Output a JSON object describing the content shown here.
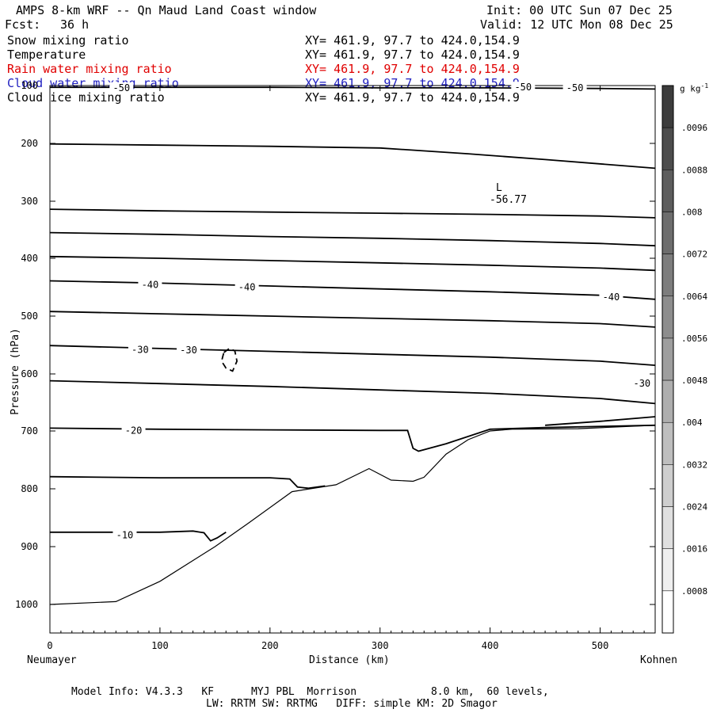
{
  "header": {
    "title": "AMPS 8-km WRF -- Qn Maud Land Coast window",
    "forecast_label": "Fcst:",
    "forecast_value": "36 h",
    "init": "Init: 00 UTC Sun 07 Dec 25",
    "valid": "Valid: 12 UTC Mon 08 Dec 25"
  },
  "fields": [
    {
      "name": "Snow mixing ratio",
      "xy": "XY= 461.9, 97.7 to 424.0,154.9",
      "color": "#000000"
    },
    {
      "name": "Temperature",
      "xy": "XY= 461.9, 97.7 to 424.0,154.9",
      "color": "#000000"
    },
    {
      "name": "Rain water mixing ratio",
      "xy": "XY= 461.9, 97.7 to 424.0,154.9",
      "color": "#e00000"
    },
    {
      "name": "Cloud water mixing ratio",
      "xy": "XY= 461.9, 97.7 to 424.0,154.9",
      "color": "#2020c0"
    },
    {
      "name": "Cloud ice mixing ratio",
      "xy": "XY= 461.9, 97.7 to 424.0,154.9",
      "color": "#000000"
    }
  ],
  "chart_data": {
    "type": "line",
    "xlabel": "Distance (km)",
    "ylabel": "Pressure (hPa)",
    "xlim": [
      0,
      550
    ],
    "ylim": [
      1050,
      100
    ],
    "x_ticks": [
      0,
      100,
      200,
      300,
      400,
      500
    ],
    "y_ticks": [
      100,
      200,
      300,
      400,
      500,
      600,
      700,
      800,
      900,
      1000
    ],
    "left_endpoint": "Neumayer",
    "right_endpoint": "Kohnen",
    "low_marker": {
      "label": "L",
      "value": "-56.77",
      "x": 408,
      "p": 290
    },
    "contour_labels": [
      {
        "text": "-50",
        "x": 65,
        "p": 104
      },
      {
        "text": "-50",
        "x": 430,
        "p": 103
      },
      {
        "text": "-50",
        "x": 477,
        "p": 104
      },
      {
        "text": "-40",
        "x": 91,
        "p": 446
      },
      {
        "text": "-40",
        "x": 179,
        "p": 450
      },
      {
        "text": "-40",
        "x": 510,
        "p": 467
      },
      {
        "text": "-30",
        "x": 82,
        "p": 558
      },
      {
        "text": "-30",
        "x": 126,
        "p": 559
      },
      {
        "text": "-30",
        "x": 538,
        "p": 617
      },
      {
        "text": "-20",
        "x": 76,
        "p": 699
      },
      {
        "text": "-10",
        "x": 68,
        "p": 880
      }
    ],
    "series": [
      {
        "name": "isotherm -50",
        "x": [
          0,
          100,
          200,
          300,
          400,
          500,
          550
        ],
        "p": [
          103,
          103,
          103,
          104,
          104,
          105,
          106
        ]
      },
      {
        "name": "isotherm 200",
        "x": [
          0,
          100,
          200,
          300,
          380,
          450,
          550
        ],
        "p": [
          201,
          203,
          205,
          208,
          218,
          228,
          243
        ]
      },
      {
        "name": "isotherm 315",
        "x": [
          0,
          100,
          200,
          300,
          400,
          500,
          550
        ],
        "p": [
          314,
          317,
          319,
          321,
          323,
          326,
          329
        ]
      },
      {
        "name": "isotherm 355",
        "x": [
          0,
          100,
          200,
          300,
          400,
          500,
          550
        ],
        "p": [
          355,
          358,
          362,
          365,
          369,
          374,
          378
        ]
      },
      {
        "name": "isotherm 395",
        "x": [
          0,
          100,
          200,
          300,
          400,
          500,
          550
        ],
        "p": [
          397,
          400,
          404,
          408,
          412,
          417,
          421
        ]
      },
      {
        "name": "isotherm -40",
        "x": [
          0,
          100,
          200,
          300,
          400,
          500,
          550
        ],
        "p": [
          439,
          443,
          448,
          453,
          458,
          464,
          471
        ]
      },
      {
        "name": "isotherm 495",
        "x": [
          0,
          100,
          200,
          300,
          400,
          500,
          550
        ],
        "p": [
          492,
          496,
          500,
          504,
          508,
          513,
          519
        ]
      },
      {
        "name": "isotherm -30",
        "x": [
          0,
          100,
          200,
          300,
          400,
          500,
          550
        ],
        "p": [
          551,
          556,
          561,
          566,
          571,
          578,
          585
        ]
      },
      {
        "name": "isotherm 615",
        "x": [
          0,
          100,
          200,
          300,
          400,
          500,
          550
        ],
        "p": [
          612,
          617,
          622,
          628,
          634,
          643,
          652
        ]
      },
      {
        "name": "isotherm -20",
        "x": [
          0,
          100,
          200,
          300,
          325,
          330,
          335,
          360,
          400,
          450,
          550
        ],
        "p": [
          695,
          697,
          698,
          699,
          699,
          730,
          735,
          722,
          697,
          694,
          690
        ]
      },
      {
        "name": "isotherm 780",
        "x": [
          0,
          100,
          200,
          218,
          225,
          235,
          250
        ],
        "p": [
          779,
          781,
          781,
          783,
          797,
          799,
          795
        ]
      },
      {
        "name": "isotherm -10",
        "x": [
          0,
          100,
          130,
          140,
          146,
          152,
          160
        ],
        "p": [
          875,
          875,
          873,
          876,
          890,
          885,
          875
        ]
      },
      {
        "name": "isotherm upper-right",
        "x": [
          450,
          500,
          550
        ],
        "p": [
          690,
          683,
          675
        ]
      },
      {
        "name": "terrain",
        "x": [
          0,
          60,
          100,
          150,
          180,
          220,
          260,
          290,
          310,
          330,
          340,
          360,
          380,
          400,
          420,
          480,
          550
        ],
        "p": [
          1000,
          995,
          960,
          900,
          860,
          805,
          793,
          765,
          785,
          787,
          780,
          740,
          715,
          700,
          697,
          696,
          690
        ]
      },
      {
        "name": "cloud ice contour",
        "x": [
          158,
          163,
          168,
          170,
          166,
          160,
          156,
          158
        ],
        "p": [
          563,
          556,
          560,
          578,
          595,
          590,
          578,
          563
        ]
      }
    ]
  },
  "colorbar": {
    "units": "g kg",
    "units_sup": "-1",
    "labels": [
      ".0096",
      ".0088",
      ".008",
      ".0072",
      ".0064",
      ".0056",
      ".0048",
      ".004",
      ".0032",
      ".0024",
      ".0016",
      ".0008"
    ]
  },
  "footer": {
    "line1": "Model Info: V4.3.3   KF      MYJ PBL  Morrison            8.0 km,  60 levels,",
    "line2": "LW: RRTM SW: RRTMG   DIFF: simple KM: 2D Smagor"
  }
}
